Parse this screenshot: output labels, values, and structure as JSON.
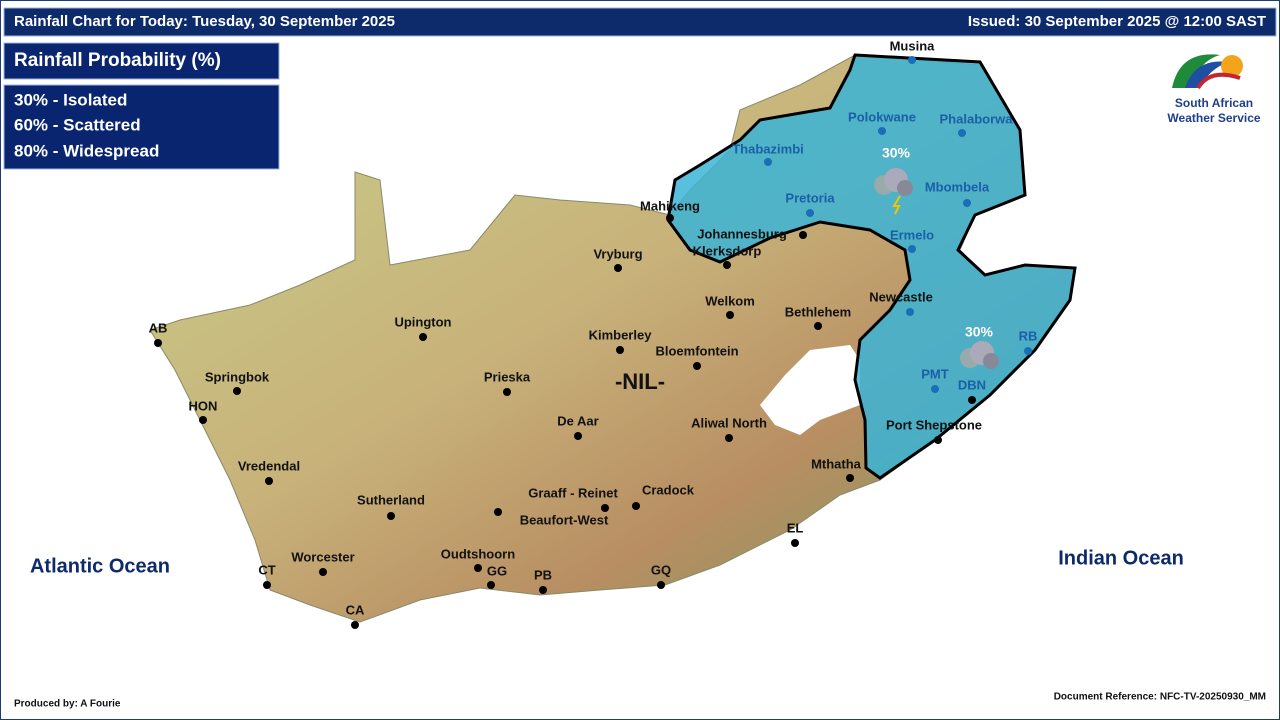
{
  "header": {
    "title": "Rainfall Chart for Today: Tuesday, 30 September 2025",
    "issued": "Issued: 30 September 2025 @ 12:00 SAST"
  },
  "legend": {
    "title": "Rainfall Probability (%)",
    "items": [
      "30% - Isolated",
      "60% - Scattered",
      "80% - Widespread"
    ]
  },
  "logo": {
    "line1": "South African",
    "line2": "Weather Service"
  },
  "oceans": [
    "Atlantic Ocean",
    "Indian Ocean"
  ],
  "regions": [
    "30%",
    "30%",
    "-NIL-"
  ],
  "cities": [
    "Musina",
    "Polokwane",
    "Phalaborwa",
    "Thabazimbi",
    "Mbombela",
    "Pretoria",
    "Mahikeng",
    "Johannesburg",
    "Ermelo",
    "Klerksdorp",
    "Vryburg",
    "Newcastle",
    "Welkom",
    "Bethlehem",
    "AB",
    "Upington",
    "Kimberley",
    "RB",
    "Bloemfontein",
    "Springbok",
    "Prieska",
    "PMT",
    "DBN",
    "HON",
    "De Aar",
    "Aliwal North",
    "Port Shepstone",
    "Vredendal",
    "Mthatha",
    "Graaff - Reinet",
    "Cradock",
    "Beaufort-West",
    "Sutherland",
    "EL",
    "Worcester",
    "Oudtshoorn",
    "CT",
    "GG",
    "PB",
    "GQ",
    "CA"
  ],
  "footer": {
    "producer": "Produced by: A Fourie",
    "reference": "Document Reference: NFC-TV-20250930_MM"
  }
}
